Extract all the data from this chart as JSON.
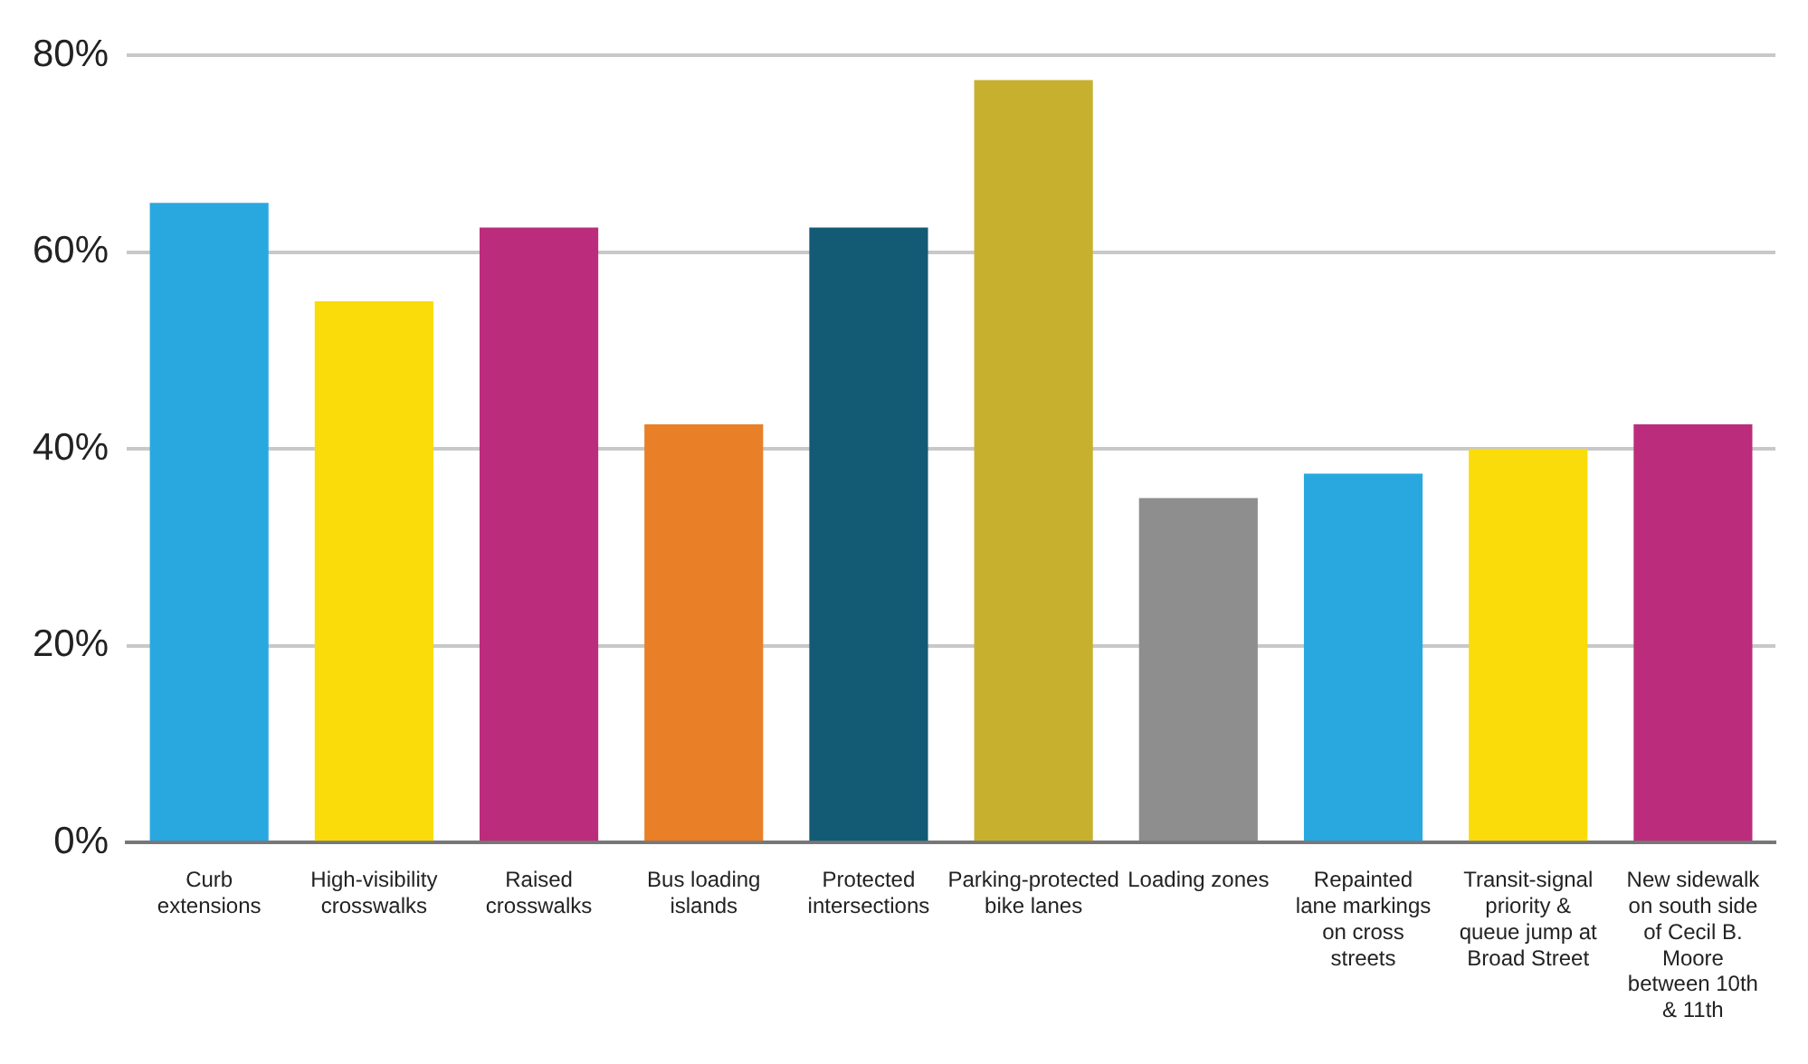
{
  "chart_data": {
    "type": "bar",
    "categories": [
      "Curb extensions",
      "High-visibility crosswalks",
      "Raised crosswalks",
      "Bus loading islands",
      "Protected intersections",
      "Parking-protected bike lanes",
      "Loading zones",
      "Repainted lane markings on cross streets",
      "Transit-signal priority & queue jump at Broad Street",
      "New sidewalk on south side of Cecil B. Moore between 10th & 11th"
    ],
    "values": [
      65,
      55,
      62.5,
      42.5,
      62.5,
      77.5,
      35,
      37.5,
      40,
      42.5
    ],
    "colors": [
      "#29a8e0",
      "#f9dc0a",
      "#bc2c7c",
      "#e97f26",
      "#135a75",
      "#c8b02f",
      "#8e8e8e",
      "#29a8e0",
      "#f9dc0a",
      "#bc2c7c"
    ],
    "ylim": [
      0,
      80
    ],
    "yticks": [
      {
        "value": 0,
        "label": "0%"
      },
      {
        "value": 20,
        "label": "20%"
      },
      {
        "value": 40,
        "label": "40%"
      },
      {
        "value": 60,
        "label": "60%"
      },
      {
        "value": 80,
        "label": "80%"
      }
    ],
    "grid": "y",
    "legend": false
  }
}
